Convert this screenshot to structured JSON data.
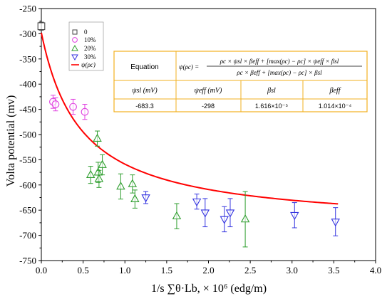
{
  "chart_data": {
    "type": "scatter",
    "ylabel": "Volta  potential  (mv)",
    "xlabel": "1/s ∑θ·Lb, × 10⁶ (edg/m)",
    "xlim": [
      0.0,
      4.0
    ],
    "ylim": [
      -750,
      -250
    ],
    "x_ticks": [
      "0.0",
      "0.5",
      "1.0",
      "1.5",
      "2.0",
      "2.5",
      "3.0",
      "3.5",
      "4.0"
    ],
    "y_ticks": [
      "-250",
      "-300",
      "-350",
      "-400",
      "-450",
      "-500",
      "-550",
      "-600",
      "-650",
      "-700",
      "-750"
    ],
    "legend_position": "top-left",
    "colors": {
      "s0": "#444444",
      "s10": "#e040e0",
      "s20": "#2e9e2e",
      "s30": "#3535e0",
      "fit": "#ff0000",
      "table_border": "#f2b020"
    },
    "series": [
      {
        "name": "0",
        "marker": "square",
        "points": [
          {
            "x": 0.0,
            "y": -285,
            "err": 8
          }
        ]
      },
      {
        "name": "10%",
        "marker": "circle",
        "points": [
          {
            "x": 0.14,
            "y": -435,
            "err": 13
          },
          {
            "x": 0.17,
            "y": -440,
            "err": 13
          },
          {
            "x": 0.38,
            "y": -445,
            "err": 15
          },
          {
            "x": 0.52,
            "y": -455,
            "err": 15
          }
        ]
      },
      {
        "name": "20%",
        "marker": "triangle-up",
        "points": [
          {
            "x": 0.59,
            "y": -580,
            "err": 17
          },
          {
            "x": 0.67,
            "y": -508,
            "err": 15
          },
          {
            "x": 0.68,
            "y": -575,
            "err": 20
          },
          {
            "x": 0.69,
            "y": -588,
            "err": 17
          },
          {
            "x": 0.73,
            "y": -560,
            "err": 20
          },
          {
            "x": 0.95,
            "y": -603,
            "err": 25
          },
          {
            "x": 1.09,
            "y": -598,
            "err": 18
          },
          {
            "x": 1.12,
            "y": -628,
            "err": 18
          },
          {
            "x": 1.62,
            "y": -662,
            "err": 25
          },
          {
            "x": 2.44,
            "y": -668,
            "err": 55
          }
        ]
      },
      {
        "name": "30%",
        "marker": "triangle-down",
        "points": [
          {
            "x": 1.25,
            "y": -625,
            "err": 12
          },
          {
            "x": 1.86,
            "y": -633,
            "err": 15
          },
          {
            "x": 1.96,
            "y": -655,
            "err": 28
          },
          {
            "x": 2.19,
            "y": -668,
            "err": 25
          },
          {
            "x": 2.26,
            "y": -655,
            "err": 28
          },
          {
            "x": 3.03,
            "y": -660,
            "err": 25
          },
          {
            "x": 3.52,
            "y": -673,
            "err": 28
          }
        ]
      }
    ],
    "fit": {
      "name": "ψ(ρc)",
      "psi_sl": -683.3,
      "psi_eff": -298,
      "beta_sl": 1.616e-05,
      "beta_eff": 0.0001014,
      "x_range": [
        0.0,
        3.55
      ]
    }
  },
  "table": {
    "equation_label": "Equation",
    "equation_lhs": "ψ(ρc) =",
    "equation_numerator": "ρc × ψsl × βeff + [max(ρc) − ρc] × ψeff × βsl",
    "equation_denominator": "ρc × βeff + [max(ρc) − ρc] × βsl",
    "headers": [
      "ψsl (mV)",
      "ψeff (mV)",
      "βsl",
      "βeff"
    ],
    "values": [
      "-683.3",
      "-298",
      "1.616×10⁻⁵",
      "1.014×10⁻⁴"
    ]
  }
}
